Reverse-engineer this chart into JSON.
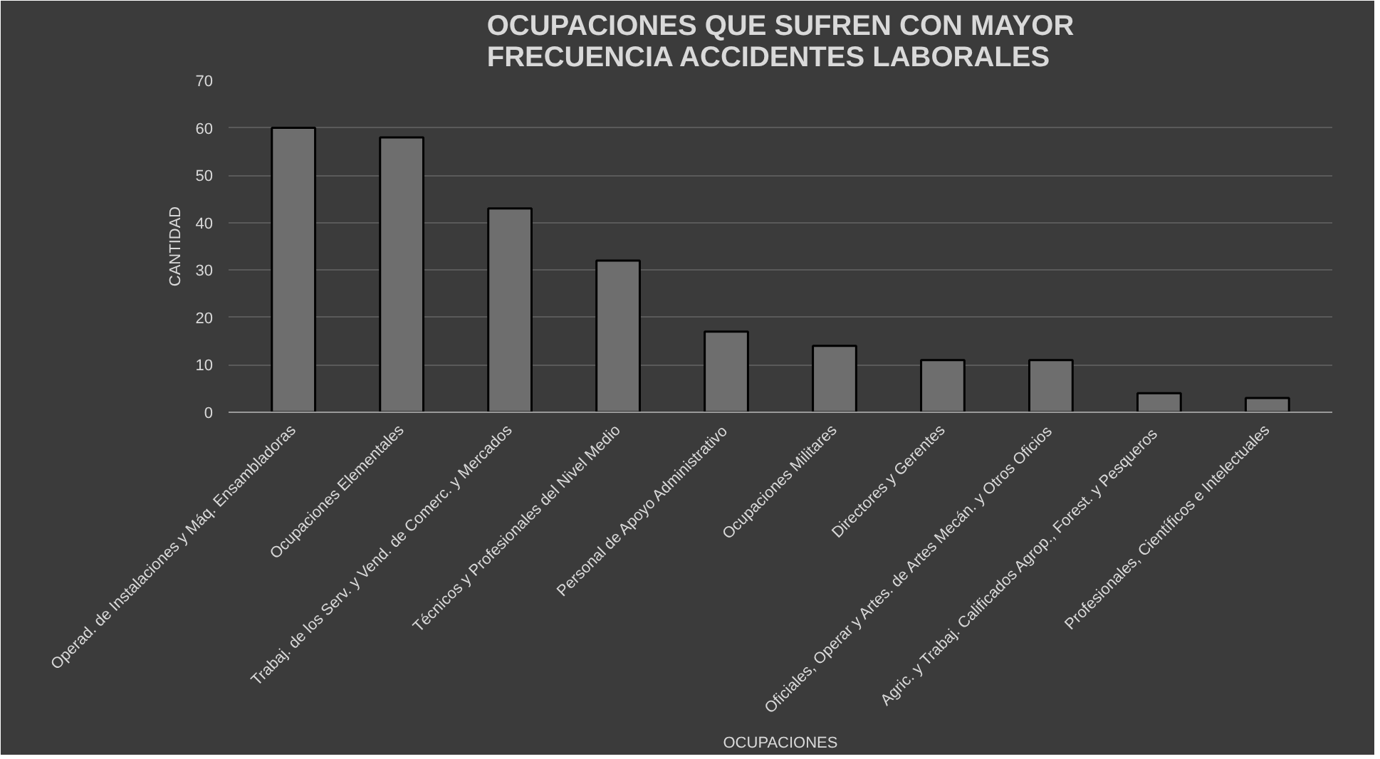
{
  "chart_data": {
    "type": "bar",
    "title": "OCUPACIONES QUE SUFREN CON MAYOR\nFRECUENCIA ACCIDENTES LABORALES",
    "xlabel": "OCUPACIONES",
    "ylabel": "CANTIDAD",
    "categories": [
      "Operad. de Instalaciones y Máq. Ensambladoras",
      "Ocupaciones Elementales",
      "Trabaj. de los Serv. y Vend. de Comerc. y Mercados",
      "Técnicos y Profesionales del Nivel Medio",
      "Personal de Apoyo Administrativo",
      "Ocupaciones Militares",
      "Directores y Gerentes",
      "Oficiales, Operar y Artes. de Artes Mecán. y Otros Oficios",
      "Agric. y Trabaj. Calificados  Agrop., Forest. y Pesqueros",
      "Profesionales, Científicos e Intelectuales"
    ],
    "values": [
      60,
      58,
      43,
      32,
      17,
      14,
      11,
      11,
      4,
      3
    ],
    "color": "#6e6e6e",
    "ylim": [
      0,
      70
    ],
    "yticks": [
      0,
      10,
      20,
      30,
      40,
      50,
      60,
      70
    ],
    "grid": "y"
  }
}
